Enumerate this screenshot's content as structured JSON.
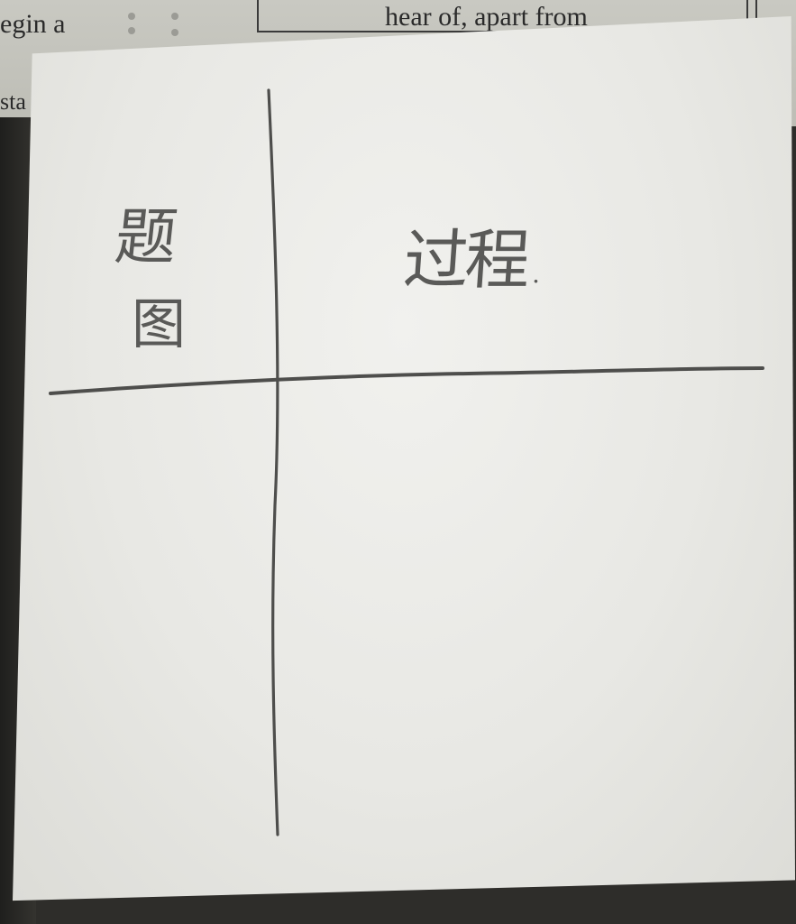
{
  "background_text": {
    "left_line_1": "egin a",
    "left_line_2": "sta",
    "box_line": "hear of, apart from"
  },
  "note": {
    "top_left_cell": [
      "题",
      "图"
    ],
    "top_right_cell": "过程",
    "top_right_dot": ".",
    "colors": {
      "paper": "#ececE8",
      "pencil": "#5a5a58"
    }
  }
}
